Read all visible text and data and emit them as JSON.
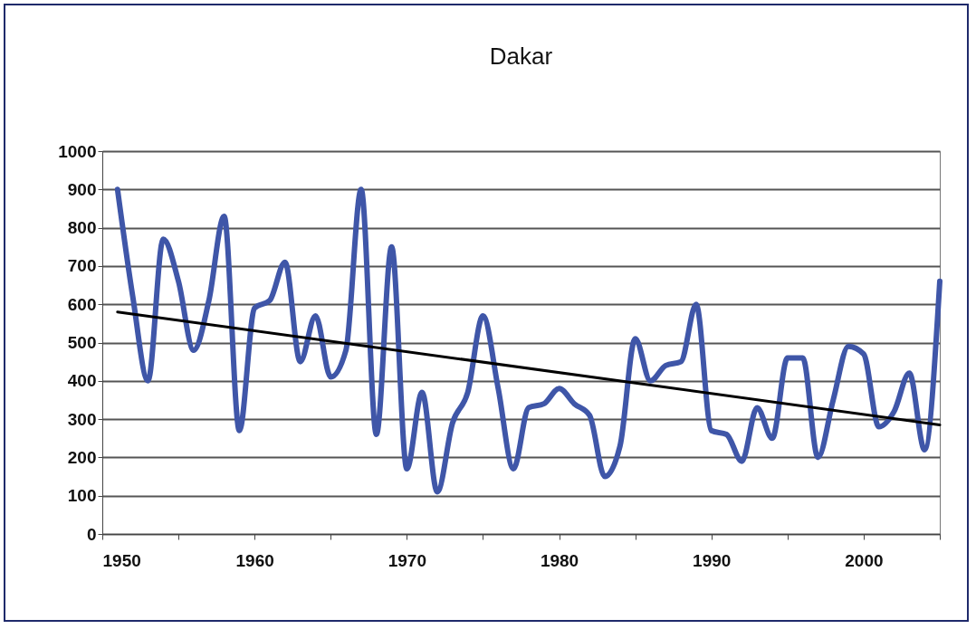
{
  "chart_data": {
    "type": "line",
    "title": "Dakar",
    "x": [
      1951,
      1952,
      1953,
      1954,
      1955,
      1956,
      1957,
      1958,
      1959,
      1960,
      1961,
      1962,
      1963,
      1964,
      1965,
      1966,
      1967,
      1968,
      1969,
      1970,
      1971,
      1972,
      1973,
      1974,
      1975,
      1976,
      1977,
      1978,
      1979,
      1980,
      1981,
      1982,
      1983,
      1984,
      1985,
      1986,
      1987,
      1988,
      1989,
      1990,
      1991,
      1992,
      1993,
      1994,
      1995,
      1996,
      1997,
      1998,
      1999,
      2000,
      2001,
      2002,
      2003,
      2004,
      2005
    ],
    "series": [
      {
        "color": "#3f56a8",
        "values": [
          900,
          620,
          400,
          770,
          660,
          480,
          610,
          830,
          270,
          590,
          610,
          710,
          450,
          570,
          410,
          480,
          900,
          260,
          750,
          170,
          370,
          110,
          290,
          370,
          570,
          380,
          170,
          330,
          340,
          380,
          340,
          310,
          150,
          230,
          510,
          400,
          440,
          450,
          600,
          270,
          260,
          190,
          330,
          250,
          460,
          460,
          200,
          350,
          490,
          470,
          280,
          320,
          420,
          220,
          660
        ]
      },
      {
        "type": "line",
        "color": "#000000",
        "x": [
          1951,
          2005
        ],
        "values": [
          580,
          285
        ]
      }
    ],
    "xlim": [
      1950,
      2005
    ],
    "xticks": [
      1950,
      {
        "value": 1955,
        "label": null
      },
      1960,
      {
        "value": 1965,
        "label": null
      },
      1970,
      {
        "value": 1975,
        "label": null
      },
      1980,
      {
        "value": 1985,
        "label": null
      },
      1990,
      {
        "value": 1995,
        "label": null
      },
      2000,
      {
        "value": 2005,
        "label": null
      }
    ],
    "ylim": [
      0,
      1000
    ],
    "yticks": [
      0,
      100,
      200,
      300,
      400,
      500,
      600,
      700,
      800,
      900,
      1000
    ],
    "grid": "y",
    "marker": "none",
    "line_style": "solid"
  }
}
